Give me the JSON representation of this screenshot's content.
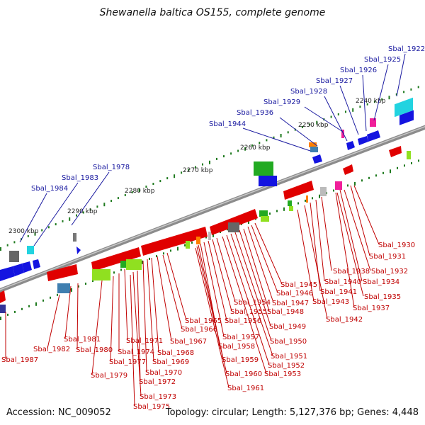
{
  "title": "Shewanella baltica OS155, complete genome",
  "accession": "Accession: NC_009052",
  "summary": "Topology: circular; Length: 5,127,376 bp; Genes: 4,448",
  "colors": {
    "forward_label": "#1a1aa0",
    "reverse_label": "#c00000",
    "backbone": "#8c8c8c",
    "tick": "#1f7a1f"
  },
  "kbp_labels": [
    "2240 kbp",
    "2250 kbp",
    "2260 kbp",
    "2270 kbp",
    "2280 kbp",
    "2290 kbp",
    "2300 kbp"
  ],
  "forward_genes": [
    "Sbal_1922",
    "Sbal_1925",
    "Sbal_1926",
    "Sbal_1927",
    "Sbal_1928",
    "Sbal_1929",
    "Sbal_1936",
    "Sbal_1944",
    "Sbal_1978",
    "Sbal_1983",
    "Sbal_1984"
  ],
  "reverse_genes": [
    "Sbal_1930",
    "Sbal_1931",
    "Sbal_1932",
    "Sbal_1934",
    "Sbal_1935",
    "Sbal_1937",
    "Sbal_1938",
    "Sbal_1940",
    "Sbal_1941",
    "Sbal_1942",
    "Sbal_1943",
    "Sbal_1945",
    "Sbal_1946",
    "Sbal_1947",
    "Sbal_1948",
    "Sbal_1949",
    "Sbal_1950",
    "Sbal_1951",
    "Sbal_1952",
    "Sbal_1953",
    "Sbal_1954",
    "Sbal_1955",
    "Sbal_1956",
    "Sbal_1957",
    "Sbal_1958",
    "Sbal_1959",
    "Sbal_1960",
    "Sbal_1961",
    "Sbal_1965",
    "Sbal_1966",
    "Sbal_1967",
    "Sbal_1968",
    "Sbal_1969",
    "Sbal_1970",
    "Sbal_1971",
    "Sbal_1972",
    "Sbal_1973",
    "Sbal_1974",
    "Sbal_1975",
    "Sbal_1977",
    "Sbal_1979",
    "Sbal_1980",
    "Sbal_1981",
    "Sbal_1982",
    "Sbal_1987"
  ]
}
